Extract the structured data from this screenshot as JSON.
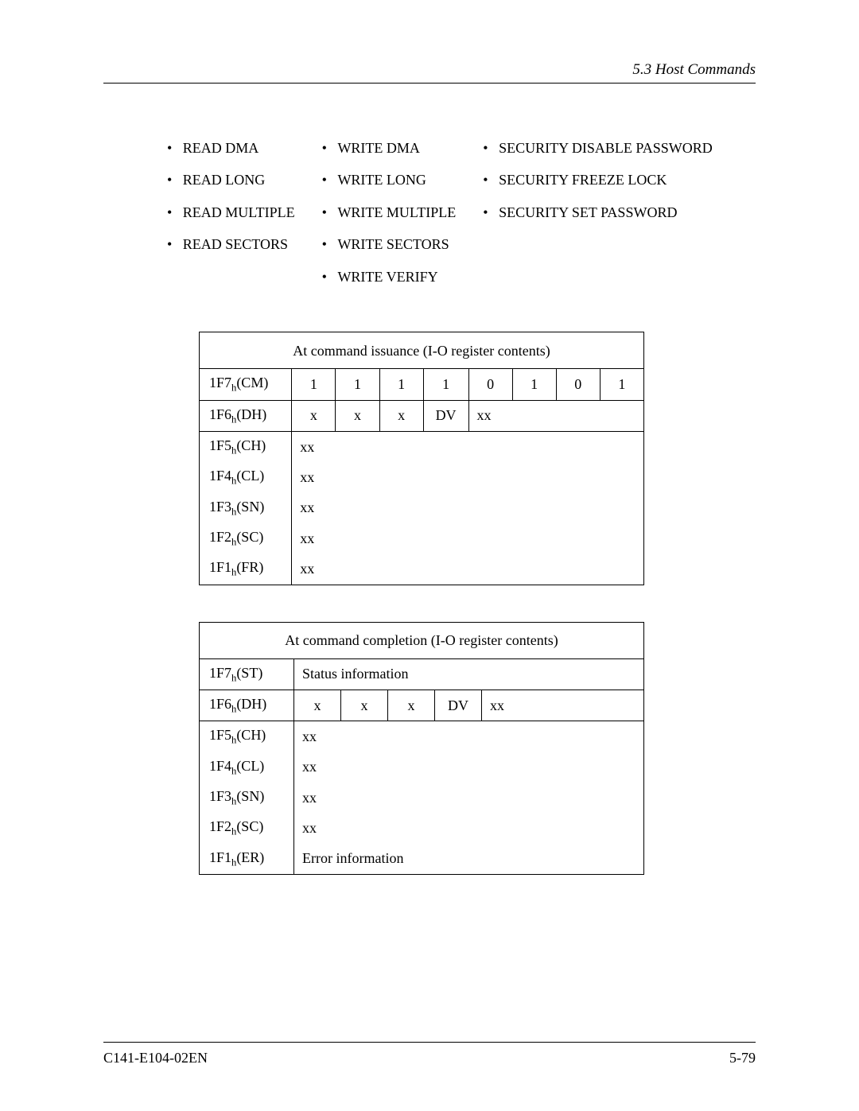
{
  "header": {
    "section": "5.3  Host Commands"
  },
  "footer": {
    "doc": "C141-E104-02EN",
    "page": "5-79"
  },
  "commands": {
    "col1": [
      "READ DMA",
      "READ LONG",
      "READ MULTIPLE",
      "READ SECTORS"
    ],
    "col2": [
      "WRITE DMA",
      "WRITE LONG",
      "WRITE MULTIPLE",
      "WRITE SECTORS",
      "WRITE VERIFY"
    ],
    "col3": [
      "SECURITY DISABLE PASSWORD",
      "SECURITY FREEZE LOCK",
      "SECURITY SET PASSWORD"
    ]
  },
  "table1": {
    "caption": "At command issuance (I-O register contents)",
    "rows": [
      {
        "label": "1F7",
        "sub": "h",
        "reg": "(CM)",
        "type": "bits",
        "bits": [
          "1",
          "1",
          "1",
          "1",
          "0",
          "1",
          "0",
          "1"
        ]
      },
      {
        "label": "1F6",
        "sub": "h",
        "reg": "(DH)",
        "type": "dv",
        "bits": [
          "x",
          "x",
          "x",
          "DV",
          "xx"
        ]
      },
      {
        "label": "1F5",
        "sub": "h",
        "reg": "(CH)",
        "type": "xx",
        "text": "xx"
      },
      {
        "label": "1F4",
        "sub": "h",
        "reg": "(CL)",
        "type": "xx",
        "text": "xx"
      },
      {
        "label": "1F3",
        "sub": "h",
        "reg": "(SN)",
        "type": "xx",
        "text": "xx"
      },
      {
        "label": "1F2",
        "sub": "h",
        "reg": "(SC)",
        "type": "xx",
        "text": "xx"
      },
      {
        "label": "1F1",
        "sub": "h",
        "reg": "(FR)",
        "type": "xx",
        "text": "xx"
      }
    ]
  },
  "table2": {
    "caption": "At command completion (I-O register contents)",
    "rows": [
      {
        "label": "1F7",
        "sub": "h",
        "reg": "(ST)",
        "type": "text",
        "text": "Status information"
      },
      {
        "label": "1F6",
        "sub": "h",
        "reg": "(DH)",
        "type": "dv",
        "bits": [
          "x",
          "x",
          "x",
          "DV",
          "xx"
        ]
      },
      {
        "label": "1F5",
        "sub": "h",
        "reg": "(CH)",
        "type": "xx",
        "text": "xx"
      },
      {
        "label": "1F4",
        "sub": "h",
        "reg": "(CL)",
        "type": "xx",
        "text": "xx"
      },
      {
        "label": "1F3",
        "sub": "h",
        "reg": "(SN)",
        "type": "xx",
        "text": "xx"
      },
      {
        "label": "1F2",
        "sub": "h",
        "reg": "(SC)",
        "type": "xx",
        "text": "xx"
      },
      {
        "label": "1F1",
        "sub": "h",
        "reg": "(ER)",
        "type": "text",
        "text": "Error information"
      }
    ]
  },
  "style": {
    "bullet": "•",
    "fontsize": 18,
    "black": "#000000",
    "white": "#ffffff"
  }
}
